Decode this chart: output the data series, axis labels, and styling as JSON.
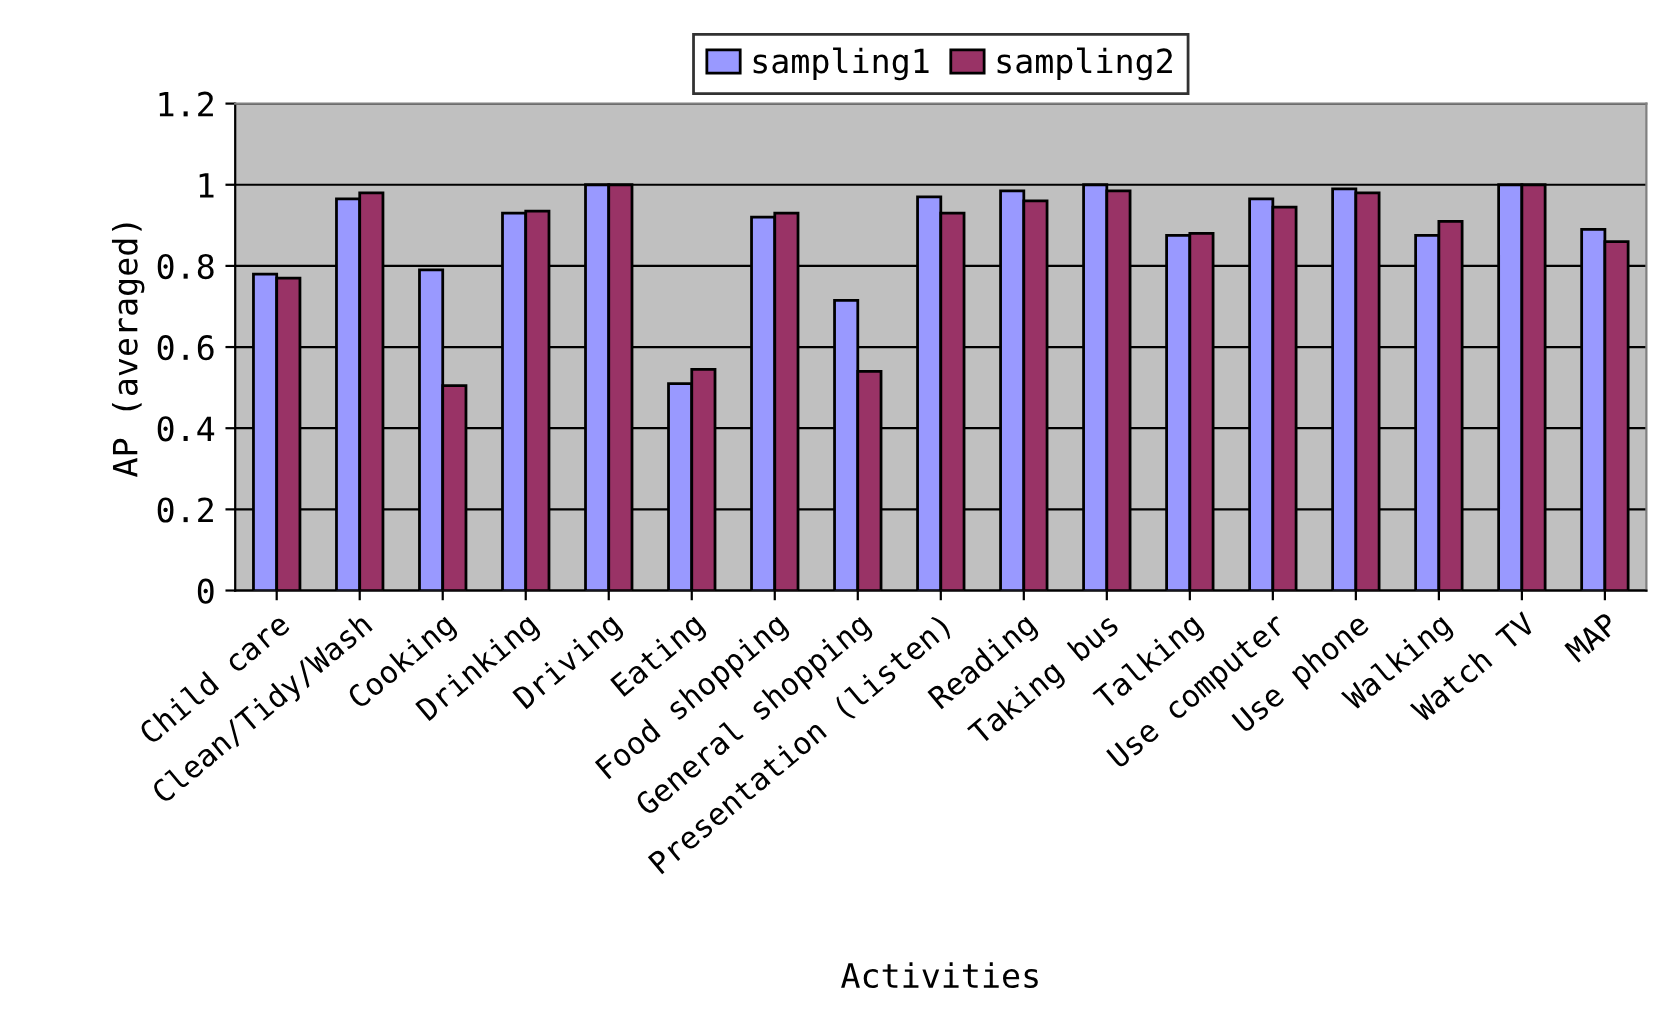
{
  "chart_data": {
    "type": "bar",
    "xlabel": "Activities",
    "ylabel": "AP (averaged)",
    "categories": [
      "Child care",
      "Clean/Tidy/Wash",
      "Cooking",
      "Drinking",
      "Driving",
      "Eating",
      "Food shopping",
      "General shopping",
      "Presentation (listen)",
      "Reading",
      "Taking bus",
      "Talking",
      "Use computer",
      "Use phone",
      "Walking",
      "Watch TV",
      "MAP"
    ],
    "series": [
      {
        "name": "sampling1",
        "color": "#9999ff",
        "values": [
          0.78,
          0.965,
          0.79,
          0.93,
          1,
          0.51,
          0.92,
          0.715,
          0.97,
          0.985,
          1,
          0.875,
          0.965,
          0.99,
          0.875,
          1,
          0.89
        ]
      },
      {
        "name": "sampling2",
        "color": "#993366",
        "values": [
          0.77,
          0.98,
          0.505,
          0.935,
          1,
          0.545,
          0.93,
          0.54,
          0.93,
          0.96,
          0.985,
          0.88,
          0.945,
          0.98,
          0.91,
          1,
          0.86
        ]
      }
    ],
    "ylim": [
      0,
      1.2
    ],
    "yticks": [
      0,
      0.2,
      0.4,
      0.6,
      0.8,
      1,
      1.2
    ],
    "grid": "y",
    "legend": "top"
  }
}
